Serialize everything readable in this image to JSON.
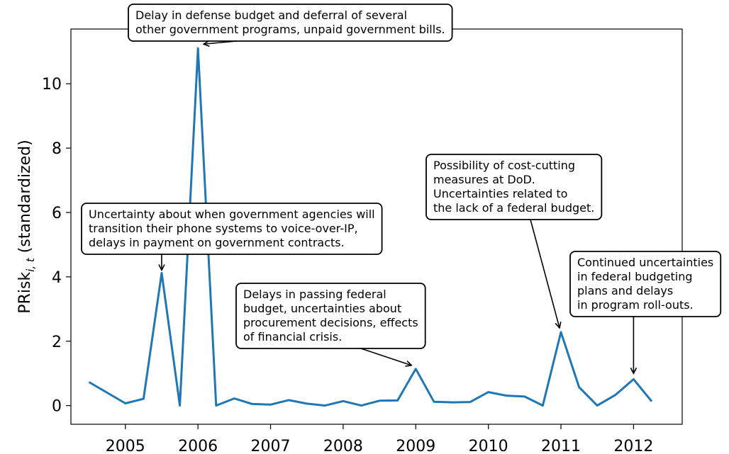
{
  "chart_data": {
    "type": "line",
    "xlabel": "",
    "ylabel": "PRisk",
    "ylabel_sub": "i, t",
    "ylabel_suffix": " (standardized)",
    "xlim": [
      2004.25,
      2012.67
    ],
    "ylim": [
      -0.58,
      11.7
    ],
    "x_ticks": [
      2005,
      2006,
      2007,
      2008,
      2009,
      2010,
      2011,
      2012
    ],
    "x_tick_labels": [
      "2005",
      "2006",
      "2007",
      "2008",
      "2009",
      "2010",
      "2011",
      "2012"
    ],
    "y_ticks": [
      0,
      2,
      4,
      6,
      8,
      10
    ],
    "y_tick_labels": [
      "0",
      "2",
      "4",
      "6",
      "8",
      "10"
    ],
    "line_color": "#1f77b4",
    "grid": false,
    "series": [
      {
        "x": [
          2004.5,
          2004.75,
          2005.0,
          2005.25,
          2005.5,
          2005.75,
          2006.0,
          2006.25,
          2006.5,
          2006.75,
          2007.0,
          2007.25,
          2007.5,
          2007.75,
          2008.0,
          2008.25,
          2008.5,
          2008.75,
          2009.0,
          2009.25,
          2009.5,
          2009.75,
          2010.0,
          2010.25,
          2010.5,
          2010.75,
          2011.0,
          2011.25,
          2011.5,
          2011.75,
          2012.0,
          2012.25
        ],
        "values": [
          0.73,
          0.4,
          0.07,
          0.21,
          4.12,
          0.0,
          11.1,
          0.0,
          0.22,
          0.05,
          0.03,
          0.17,
          0.06,
          0.0,
          0.14,
          0.0,
          0.15,
          0.16,
          1.14,
          0.12,
          0.1,
          0.11,
          0.42,
          0.31,
          0.28,
          0.0,
          2.28,
          0.57,
          0.0,
          0.33,
          0.82,
          0.13
        ]
      }
    ],
    "annotations": [
      {
        "lines": [
          "Delay in defense budget and deferral of several",
          "other government programs, unpaid government bills."
        ],
        "point": [
          2006.0,
          11.1
        ]
      },
      {
        "lines": [
          "Uncertainty about when government agencies will",
          "transition their phone systems to voice-over-IP,",
          "delays in payment on government contracts."
        ],
        "point": [
          2005.5,
          4.12
        ]
      },
      {
        "lines": [
          "Delays in passing federal",
          "budget, uncertainties about",
          "procurement decisions, effects",
          "of financial crisis."
        ],
        "point": [
          2009.0,
          1.14
        ]
      },
      {
        "lines": [
          "Possibility of cost-cutting",
          "measures at DoD.",
          "Uncertainties related to",
          "the lack of a federal budget."
        ],
        "point": [
          2011.0,
          2.28
        ]
      },
      {
        "lines": [
          "Continued uncertainties",
          "in federal budgeting",
          "plans and delays",
          "in program roll-outs."
        ],
        "point": [
          2012.0,
          0.82
        ]
      }
    ]
  }
}
